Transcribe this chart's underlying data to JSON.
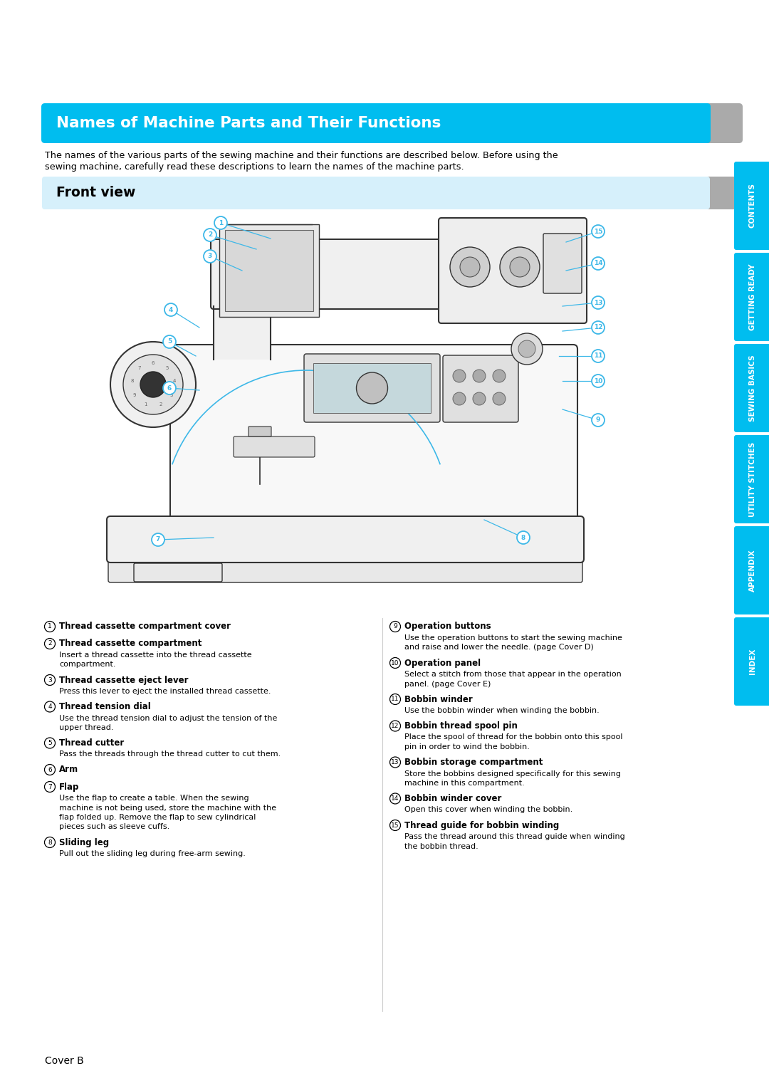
{
  "page_bg": "#ffffff",
  "main_title": "Names of Machine Parts and Their Functions",
  "main_title_bg": "#00bdef",
  "main_title_color": "#ffffff",
  "section_title": "Front view",
  "section_title_bg": "#d6f0fb",
  "intro_text1": "The names of the various parts of the sewing machine and their functions are described below. Before using the",
  "intro_text2": "sewing machine, carefully read these descriptions to learn the names of the machine parts.",
  "tab_labels": [
    "CONTENTS",
    "GETTING READY",
    "SEWING BASICS",
    "UTILITY STITCHES",
    "APPENDIX",
    "INDEX"
  ],
  "tab_color": "#00bdef",
  "tab_text_color": "#ffffff",
  "footer_text": "Cover B",
  "cyan": "#3db8e8",
  "line_color": "#3db8e8",
  "parts_left": [
    {
      "num": "1",
      "title": "Thread cassette compartment cover",
      "desc": ""
    },
    {
      "num": "2",
      "title": "Thread cassette compartment",
      "desc": "Insert a thread cassette into the thread cassette\ncompartment."
    },
    {
      "num": "3",
      "title": "Thread cassette eject lever",
      "desc": "Press this lever to eject the installed thread cassette."
    },
    {
      "num": "4",
      "title": "Thread tension dial",
      "desc": "Use the thread tension dial to adjust the tension of the\nupper thread."
    },
    {
      "num": "5",
      "title": "Thread cutter",
      "desc": "Pass the threads through the thread cutter to cut them."
    },
    {
      "num": "6",
      "title": "Arm",
      "desc": ""
    },
    {
      "num": "7",
      "title": "Flap",
      "desc": "Use the flap to create a table. When the sewing\nmachine is not being used, store the machine with the\nflap folded up. Remove the flap to sew cylindrical\npieces such as sleeve cuffs."
    },
    {
      "num": "8",
      "title": "Sliding leg",
      "desc": "Pull out the sliding leg during free-arm sewing."
    }
  ],
  "parts_right": [
    {
      "num": "9",
      "title": "Operation buttons",
      "desc": "Use the operation buttons to start the sewing machine\nand raise and lower the needle. (page Cover D)"
    },
    {
      "num": "10",
      "title": "Operation panel",
      "desc": "Select a stitch from those that appear in the operation\npanel. (page Cover E)"
    },
    {
      "num": "11",
      "title": "Bobbin winder",
      "desc": "Use the bobbin winder when winding the bobbin."
    },
    {
      "num": "12",
      "title": "Bobbin thread spool pin",
      "desc": "Place the spool of thread for the bobbin onto this spool\npin in order to wind the bobbin."
    },
    {
      "num": "13",
      "title": "Bobbin storage compartment",
      "desc": "Store the bobbins designed specifically for this sewing\nmachine in this compartment."
    },
    {
      "num": "14",
      "title": "Bobbin winder cover",
      "desc": "Open this cover when winding the bobbin."
    },
    {
      "num": "15",
      "title": "Thread guide for bobbin winding",
      "desc": "Pass the thread around this thread guide when winding\nthe bobbin thread."
    }
  ]
}
